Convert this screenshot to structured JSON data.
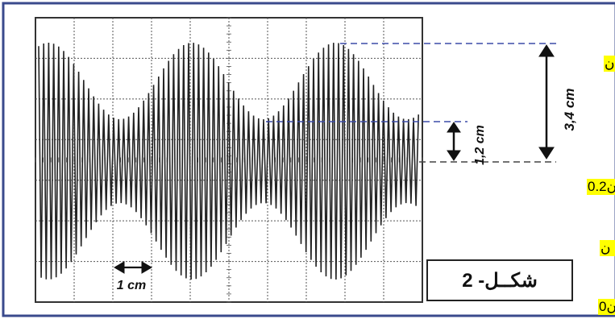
{
  "figure": {
    "label_text": "شكــل- 2",
    "scale_label": "1 cm",
    "measure_large": "3,4 cm",
    "measure_small": "1,2 cm"
  },
  "side_fragments": {
    "f1": "ن",
    "f2": "0.2ن",
    "f3": "ن",
    "f4": "0ن"
  },
  "colors": {
    "frame": "#3a4a8c",
    "dashed": "#3b4ba8",
    "grid": "#555555",
    "signal": "#222222",
    "highlight": "#ffff00"
  }
}
